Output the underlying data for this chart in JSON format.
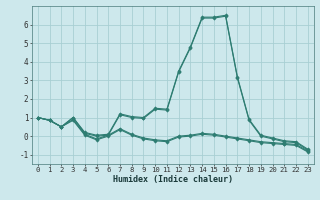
{
  "title": "",
  "xlabel": "Humidex (Indice chaleur)",
  "bg_color": "#cde8ec",
  "grid_color": "#a8cfd4",
  "line_color": "#2e7d72",
  "x": [
    0,
    1,
    2,
    3,
    4,
    5,
    6,
    7,
    8,
    9,
    10,
    11,
    12,
    13,
    14,
    15,
    16,
    17,
    18,
    19,
    20,
    21,
    22,
    23
  ],
  "series": [
    [
      1.0,
      0.85,
      0.5,
      1.0,
      0.2,
      0.05,
      0.1,
      1.2,
      1.05,
      1.0,
      1.5,
      1.45,
      3.5,
      4.8,
      6.4,
      6.4,
      6.5,
      3.2,
      0.9,
      0.05,
      -0.1,
      -0.25,
      -0.3,
      -0.7
    ],
    [
      1.0,
      0.85,
      0.5,
      1.0,
      0.15,
      0.0,
      0.05,
      1.15,
      1.0,
      0.95,
      1.45,
      1.4,
      3.45,
      4.75,
      6.35,
      6.35,
      6.45,
      3.15,
      0.85,
      0.0,
      -0.15,
      -0.3,
      -0.35,
      -0.75
    ],
    [
      1.0,
      0.85,
      0.5,
      0.9,
      0.1,
      -0.15,
      0.05,
      0.4,
      0.1,
      -0.1,
      -0.2,
      -0.25,
      0.0,
      0.05,
      0.15,
      0.1,
      0.0,
      -0.1,
      -0.2,
      -0.3,
      -0.35,
      -0.4,
      -0.45,
      -0.8
    ],
    [
      1.0,
      0.85,
      0.5,
      0.85,
      0.05,
      -0.2,
      0.0,
      0.35,
      0.05,
      -0.15,
      -0.25,
      -0.3,
      -0.05,
      0.0,
      0.1,
      0.05,
      -0.05,
      -0.15,
      -0.25,
      -0.35,
      -0.4,
      -0.45,
      -0.5,
      -0.85
    ]
  ],
  "ylim": [
    -1.5,
    7.0
  ],
  "yticks": [
    -1,
    0,
    1,
    2,
    3,
    4,
    5,
    6
  ],
  "xticks": [
    0,
    1,
    2,
    3,
    4,
    5,
    6,
    7,
    8,
    9,
    10,
    11,
    12,
    13,
    14,
    15,
    16,
    17,
    18,
    19,
    20,
    21,
    22,
    23
  ],
  "xlabel_fontsize": 6.0,
  "tick_fontsize": 5.2,
  "ytick_fontsize": 5.5,
  "linewidth": 0.8,
  "markersize": 1.8
}
